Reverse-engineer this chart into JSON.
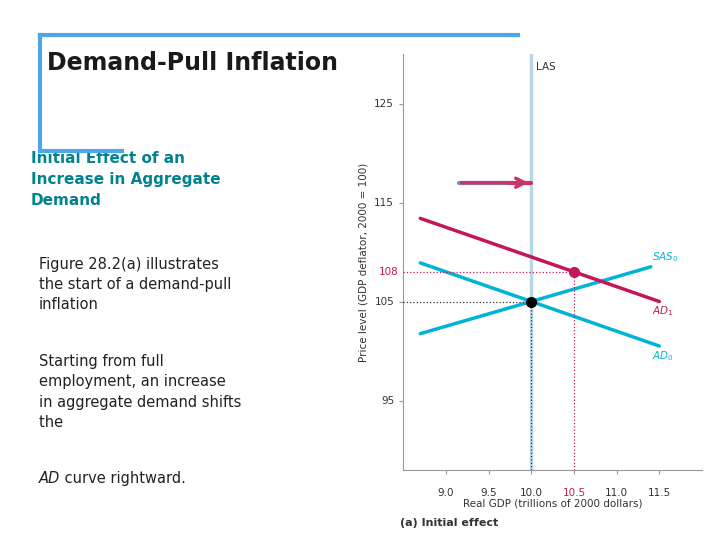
{
  "title": "Demand-Pull Inflation",
  "subtitle_bold": "Initial Effect of an\nIncrease in Aggregate\nDemand",
  "body_text1": "Figure 28.2(a) illustrates\nthe start of a demand-pull\ninflation",
  "body_text2_pre": "Starting from full\nemployment, an increase\nin aggregate demand shifts\nthe ",
  "body_text2_italic": "AD",
  "body_text2_post": " curve rightward.",
  "xlabel": "Real GDP (trillions of 2000 dollars)",
  "ylabel": "Price level (GDP deflator, 2000 = 100)",
  "caption": "(a) Initial effect",
  "xlim": [
    8.5,
    12.0
  ],
  "ylim": [
    88,
    130
  ],
  "xticks": [
    9.0,
    9.5,
    10.0,
    10.5,
    11.0,
    11.5
  ],
  "yticks": [
    95,
    105,
    115,
    125
  ],
  "ytick_labels": [
    "95",
    "105",
    "115",
    "125"
  ],
  "las_x": 10.0,
  "las_color": "#b8d8e8",
  "sas_slope": 2.5,
  "sas_color": "#00b4d8",
  "ad0_slope": -3.0,
  "ad0_color": "#00b4d8",
  "ad1_slope": -3.0,
  "ad1_color": "#c2185b",
  "eq0_x": 10.0,
  "eq0_y": 105,
  "eq1_x": 10.5,
  "eq1_y": 108,
  "bg_color": "#ffffff",
  "title_color": "#1a1a1a",
  "subtitle_color": "#00838f",
  "accent_color": "#4da6e8",
  "eq0_dotline_color": "#333333",
  "eq1_dotline_color": "#c2185b",
  "arrow_blue": "#7090cc",
  "arrow_pink": "#cc3366"
}
